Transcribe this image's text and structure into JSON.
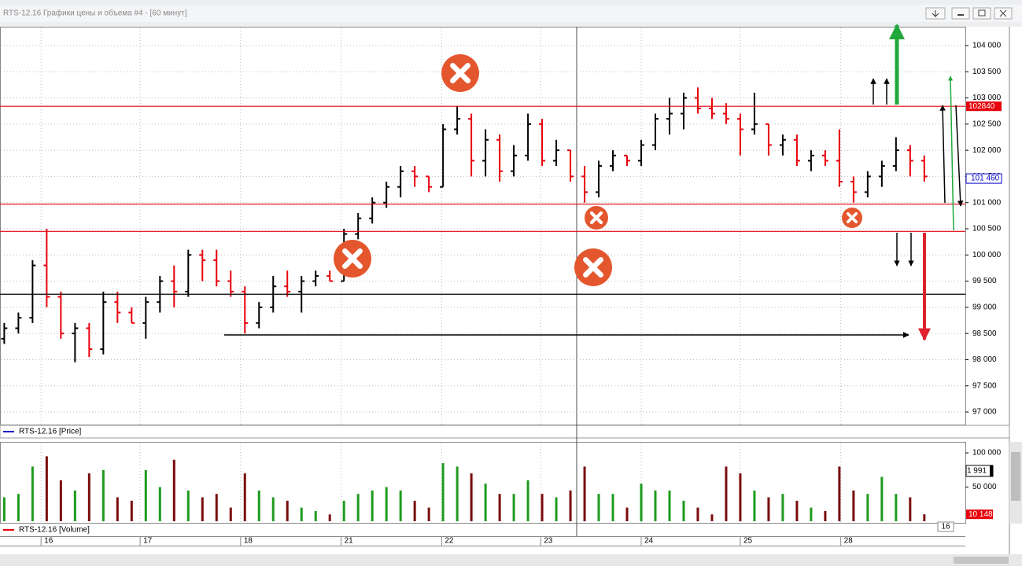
{
  "window": {
    "title": "RTS-12.16 Графики цены и объема #4 - [60 минут]"
  },
  "chart_data": [
    {
      "type": "ohlc",
      "legend": "RTS-12.16 [Price]",
      "legend_color": "#0000c8",
      "open": [
        98400,
        98600,
        98800,
        99800,
        99200,
        98500,
        98600,
        98200,
        99100,
        98900,
        98700,
        99100,
        99500,
        99300,
        100000,
        99900,
        99500,
        99300,
        98700,
        99000,
        99400,
        99300,
        99500,
        99600,
        99500,
        100400,
        100700,
        101000,
        101300,
        101600,
        101500,
        101300,
        102400,
        102600,
        101800,
        102200,
        101600,
        101900,
        102500,
        101800,
        102000,
        101500,
        101200,
        101700,
        101900,
        101800,
        102100,
        102600,
        102700,
        103000,
        102800,
        102700,
        102600,
        102400,
        102500,
        102100,
        102200,
        101800,
        101900,
        101800,
        101400,
        101200,
        101500,
        101700,
        102000,
        101800
      ],
      "high": [
        98700,
        98900,
        99900,
        100500,
        99300,
        98700,
        98700,
        99300,
        99300,
        99000,
        99200,
        99600,
        99800,
        100100,
        100100,
        100100,
        99700,
        99400,
        99100,
        99600,
        99700,
        99600,
        99700,
        99700,
        100500,
        100800,
        101100,
        101400,
        101700,
        101700,
        101500,
        102500,
        102850,
        102700,
        102400,
        102300,
        102100,
        102700,
        102600,
        102200,
        102000,
        101700,
        101800,
        102000,
        101900,
        102200,
        102700,
        103000,
        103100,
        103200,
        103000,
        102900,
        102700,
        103100,
        102500,
        102300,
        102300,
        102000,
        102000,
        102400,
        101500,
        101600,
        101800,
        102250,
        102100,
        101900
      ],
      "low": [
        98300,
        98500,
        98700,
        99000,
        98400,
        97950,
        98050,
        98100,
        98700,
        98700,
        98400,
        98900,
        99000,
        99200,
        99500,
        99400,
        99200,
        98500,
        98600,
        98900,
        99200,
        98900,
        99400,
        99500,
        99500,
        100300,
        100600,
        100900,
        101100,
        101300,
        101200,
        101300,
        102300,
        101500,
        101500,
        101400,
        101500,
        101800,
        101700,
        101700,
        101400,
        101000,
        101100,
        101600,
        101700,
        101700,
        102000,
        102300,
        102400,
        102700,
        102600,
        102500,
        101900,
        102300,
        101900,
        101900,
        101700,
        101600,
        101700,
        101300,
        101000,
        101100,
        101300,
        101600,
        101500,
        101400
      ],
      "close": [
        98600,
        98800,
        99800,
        99200,
        98500,
        98600,
        98200,
        99100,
        98900,
        98700,
        99100,
        99500,
        99300,
        100000,
        99900,
        99500,
        99300,
        98700,
        99000,
        99400,
        99300,
        99500,
        99600,
        99500,
        100400,
        100700,
        101000,
        101300,
        101600,
        101500,
        101300,
        102400,
        102600,
        101800,
        102200,
        101600,
        101900,
        102500,
        101800,
        102000,
        101500,
        101200,
        101700,
        101900,
        101800,
        102100,
        102600,
        102700,
        103000,
        102800,
        102700,
        102600,
        102400,
        102500,
        102100,
        102200,
        101800,
        101900,
        101800,
        101400,
        101200,
        101500,
        101700,
        102000,
        101800,
        101500
      ],
      "up_color": "#000000",
      "down_color": "#e8000b",
      "xlim": [
        -0.3,
        67.9
      ],
      "xticks": [
        {
          "value": 2.6,
          "label": "16"
        },
        {
          "value": 9.6,
          "label": "17"
        },
        {
          "value": 16.7,
          "label": "18"
        },
        {
          "value": 23.8,
          "label": "21"
        },
        {
          "value": 30.9,
          "label": "22"
        },
        {
          "value": 37.9,
          "label": "23"
        },
        {
          "value": 45,
          "label": "24"
        },
        {
          "value": 52,
          "label": "25"
        },
        {
          "value": 59.1,
          "label": "28"
        }
      ],
      "ylim": [
        96760,
        104360
      ],
      "yticks": [
        {
          "value": 97000,
          "label": "97 000"
        },
        {
          "value": 97500,
          "label": "97 500"
        },
        {
          "value": 98000,
          "label": "98 000"
        },
        {
          "value": 98500,
          "label": "98 500"
        },
        {
          "value": 99000,
          "label": "99 000"
        },
        {
          "value": 99500,
          "label": "99 500"
        },
        {
          "value": 100000,
          "label": "100 000"
        },
        {
          "value": 100500,
          "label": "100 500"
        },
        {
          "value": 101000,
          "label": "101 000"
        },
        {
          "value": 101500,
          "label": "101 500"
        },
        {
          "value": 102000,
          "label": "102 000"
        },
        {
          "value": 102500,
          "label": "102 500"
        },
        {
          "value": 103000,
          "label": "103 000"
        },
        {
          "value": 103500,
          "label": "103 500"
        },
        {
          "value": 104000,
          "label": "104 000"
        }
      ],
      "grid": true,
      "levels": [
        {
          "value": 102840,
          "label": "102840",
          "color": "#e8000b"
        },
        {
          "value": 100970,
          "color": "#e8000b"
        },
        {
          "value": 100450,
          "color": "#e8000b"
        },
        {
          "value": 99250,
          "color": "#000000"
        }
      ],
      "last": {
        "value": 101460,
        "label": "101 460",
        "color": "#0000c8"
      }
    },
    {
      "type": "volume",
      "legend": "RTS-12.16 [Volume]",
      "legend_color": "#e8000b",
      "values": [
        35000,
        40000,
        80000,
        95000,
        60000,
        45000,
        70000,
        75000,
        35000,
        30000,
        75000,
        50000,
        90000,
        45000,
        35000,
        40000,
        20000,
        70000,
        45000,
        35000,
        30000,
        20000,
        15000,
        10000,
        30000,
        40000,
        45000,
        50000,
        45000,
        30000,
        20000,
        85000,
        80000,
        70000,
        55000,
        40000,
        40000,
        60000,
        40000,
        35000,
        45000,
        80000,
        40000,
        40000,
        20000,
        55000,
        45000,
        45000,
        30000,
        20000,
        10000,
        80000,
        70000,
        45000,
        35000,
        40000,
        30000,
        20000,
        15000,
        80000,
        45000,
        40000,
        65000,
        40000,
        35000,
        10148
      ],
      "up_color": "#1e9b1e",
      "down_color": "#7b0c0c",
      "ylim": [
        0,
        115000
      ],
      "yticks": [
        {
          "value": 50000,
          "label": "50 000"
        },
        {
          "value": 100000,
          "label": "100 000"
        }
      ],
      "last": {
        "value": 10148,
        "label": "10 148",
        "color": "#e8000b"
      },
      "cursor_label": "1 991",
      "end_label": "16"
    }
  ]
}
